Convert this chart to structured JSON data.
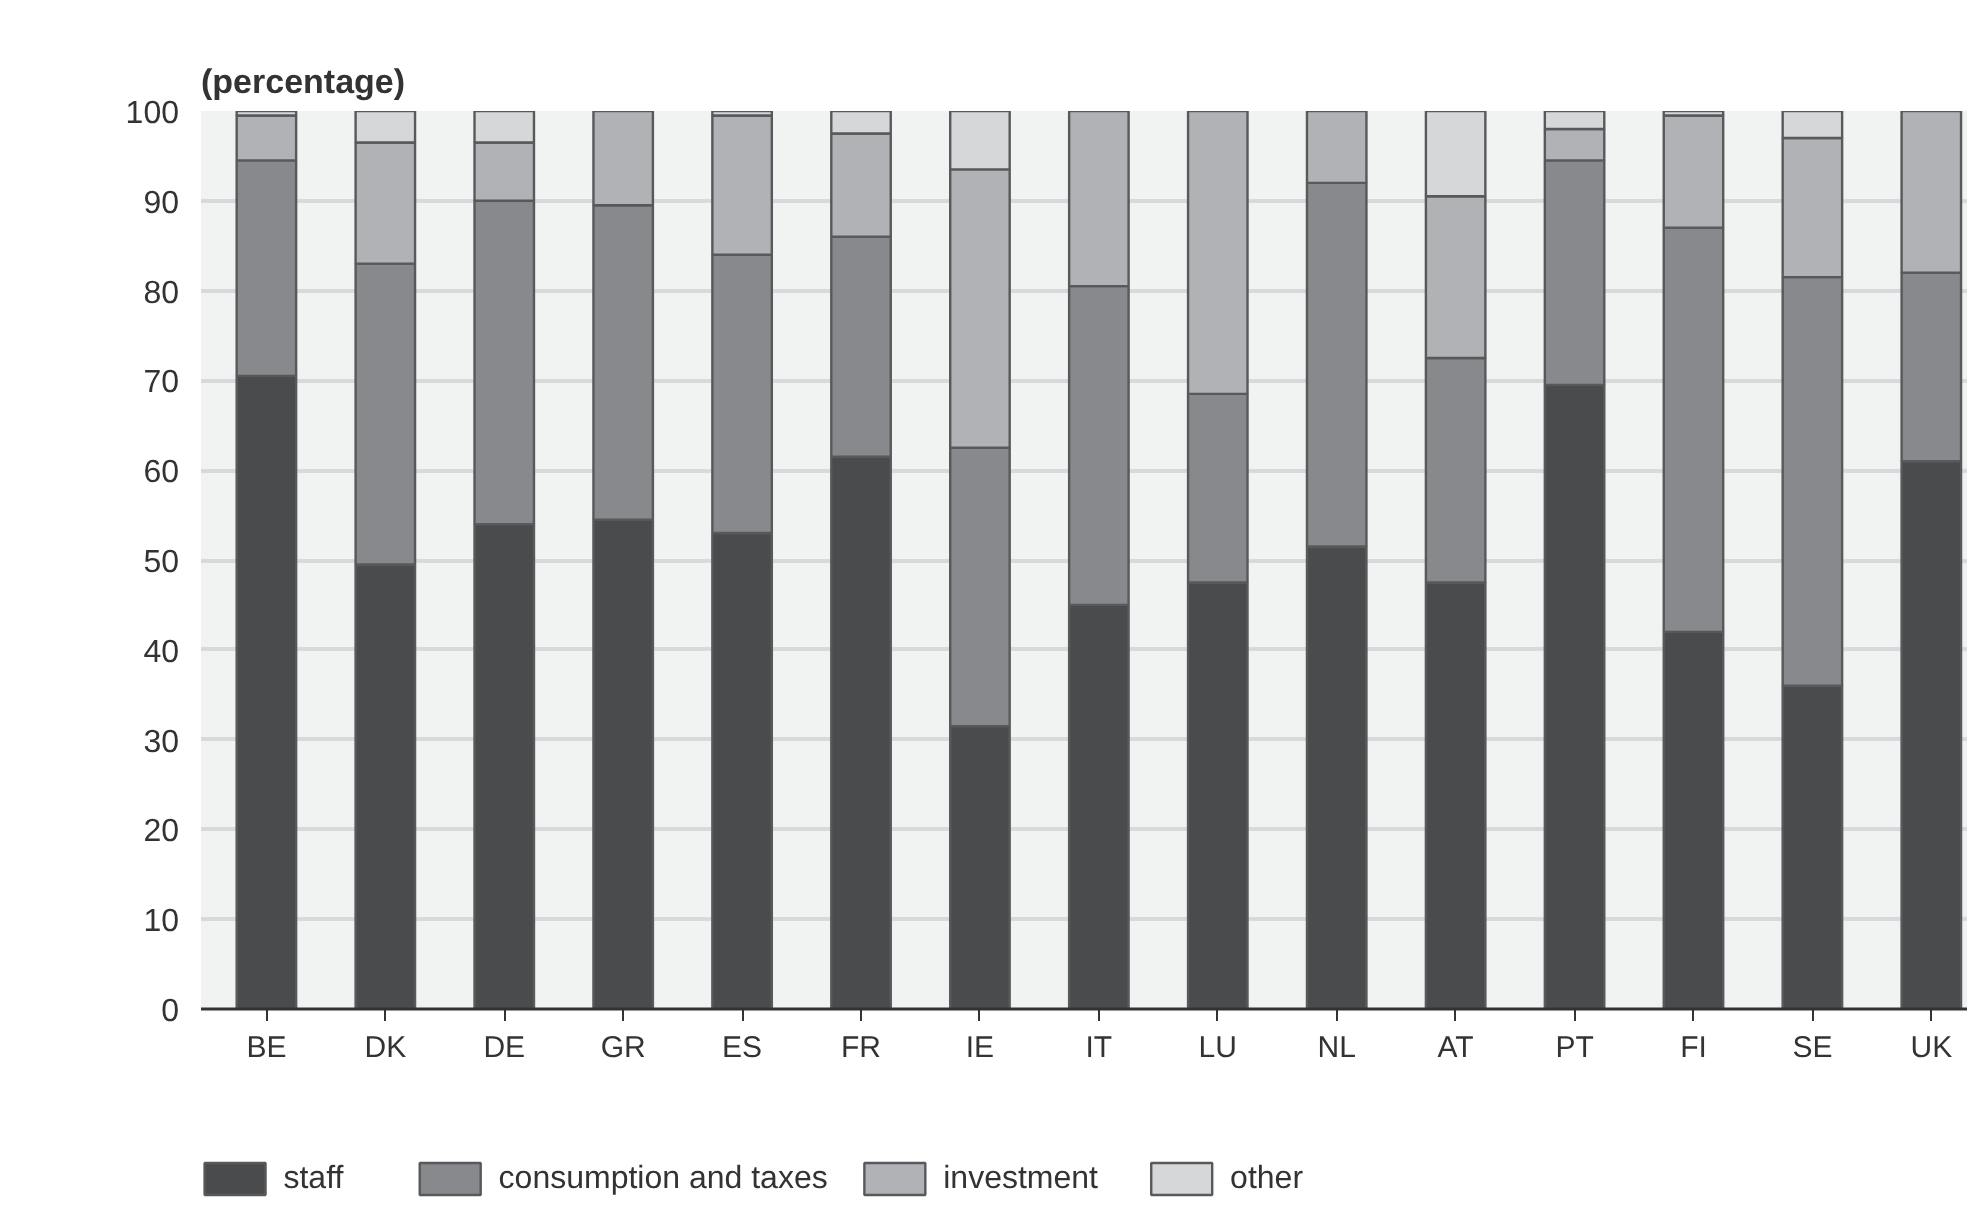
{
  "chart_data": {
    "type": "bar",
    "title": "(percentage)",
    "stacked": true,
    "categories": [
      "BE",
      "DK",
      "DE",
      "GR",
      "ES",
      "FR",
      "IE",
      "IT",
      "LU",
      "NL",
      "AT",
      "PT",
      "FI",
      "SE",
      "UK"
    ],
    "series": [
      {
        "name": "staff",
        "color": "#4a4b4d",
        "values": [
          70.5,
          49.5,
          54,
          54.5,
          53,
          61.5,
          31.5,
          45,
          47.5,
          51.5,
          47.5,
          69.5,
          42,
          36,
          61
        ]
      },
      {
        "name": "consumption and taxes",
        "color": "#88898c",
        "values": [
          24,
          33.5,
          36,
          35,
          31,
          24.5,
          31,
          35.5,
          21,
          40.5,
          25,
          25,
          45,
          45.5,
          21
        ]
      },
      {
        "name": "investment",
        "color": "#b1b2b5",
        "values": [
          5,
          13.5,
          6.5,
          10.5,
          15.5,
          11.5,
          31,
          19.5,
          31.5,
          8,
          18,
          3.5,
          12.5,
          15.5,
          18
        ]
      },
      {
        "name": "other",
        "color": "#d6d7d9",
        "values": [
          0.5,
          3.5,
          3.5,
          null,
          0.5,
          2.5,
          6.5,
          null,
          null,
          null,
          9.5,
          2,
          0.5,
          3,
          null
        ]
      }
    ],
    "ylim": [
      0,
      100
    ],
    "yticks": [
      0,
      10,
      20,
      30,
      40,
      50,
      60,
      70,
      80,
      90,
      100
    ],
    "grid": "y",
    "legend": "bottom"
  }
}
